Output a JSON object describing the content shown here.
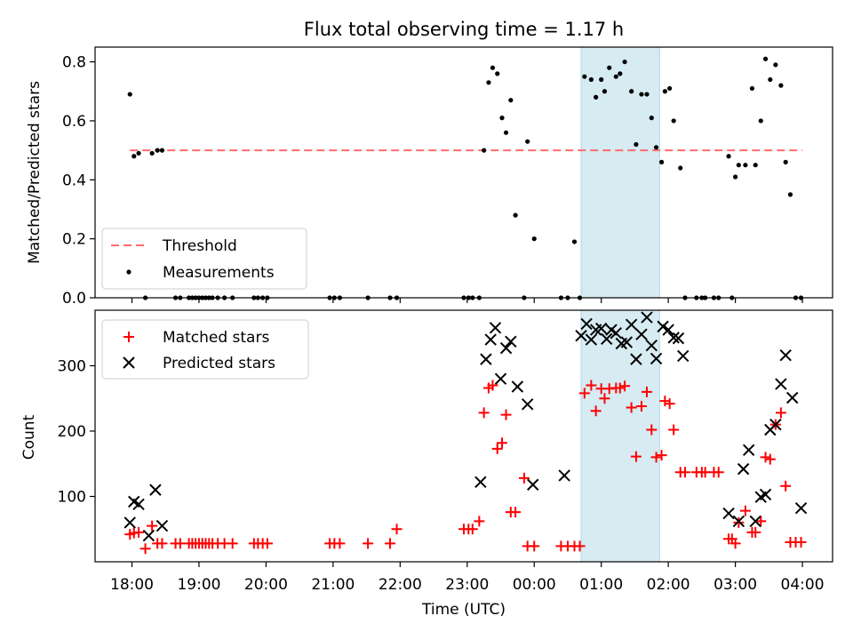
{
  "figure": {
    "title": "Flux total observing time = 1.17 h"
  },
  "chart_data": [
    {
      "type": "scatter",
      "panel": "top",
      "xlabel": "",
      "ylabel": "Matched/Predicted stars",
      "xlim": [
        -0.55,
        10.45
      ],
      "ylim": [
        0,
        0.85
      ],
      "yticks": [
        0.0,
        0.2,
        0.4,
        0.6,
        0.8
      ],
      "ytick_labels": [
        "0.0",
        "0.2",
        "0.4",
        "0.6",
        "0.8"
      ],
      "shaded_region": {
        "x": [
          6.7,
          7.87
        ],
        "color": "#add8e6"
      },
      "legend": {
        "position": "lower-left",
        "entries": [
          "Threshold",
          "Measurements"
        ]
      },
      "series": [
        {
          "name": "Threshold",
          "kind": "line",
          "style": "dashed",
          "color": "#ff6b6b",
          "x": [
            -0.03,
            10.0
          ],
          "y": [
            0.5,
            0.5
          ]
        },
        {
          "name": "Measurements",
          "kind": "scatter",
          "color": "#000000",
          "x": [
            -0.03,
            0.03,
            0.1,
            0.2,
            0.3,
            0.38,
            0.45,
            0.65,
            0.72,
            0.85,
            0.9,
            0.95,
            1.0,
            1.05,
            1.1,
            1.15,
            1.2,
            1.28,
            1.38,
            1.5,
            1.82,
            1.88,
            1.95,
            2.02,
            2.95,
            3.02,
            3.1,
            3.52,
            3.85,
            3.95,
            4.95,
            5.02,
            5.08,
            5.18,
            5.25,
            5.32,
            5.38,
            5.45,
            5.52,
            5.58,
            5.65,
            5.72,
            5.85,
            5.9,
            6.0,
            6.4,
            6.5,
            6.6,
            6.68,
            6.75,
            6.85,
            6.92,
            7.0,
            7.05,
            7.12,
            7.22,
            7.28,
            7.35,
            7.45,
            7.52,
            7.6,
            7.68,
            7.75,
            7.82,
            7.9,
            7.95,
            8.02,
            8.08,
            8.18,
            8.25,
            8.42,
            8.5,
            8.55,
            8.68,
            8.75,
            8.9,
            8.95,
            9.0,
            9.05,
            9.15,
            9.25,
            9.3,
            9.38,
            9.45,
            9.52,
            9.6,
            9.68,
            9.75,
            9.82,
            9.9,
            9.98
          ],
          "y": [
            0.69,
            0.48,
            0.49,
            0.0,
            0.49,
            0.5,
            0.5,
            0.0,
            0.0,
            0.0,
            0.0,
            0.0,
            0.0,
            0.0,
            0.0,
            0.0,
            0.0,
            0.0,
            0.0,
            0.0,
            0.0,
            0.0,
            0.0,
            0.0,
            0.0,
            0.0,
            0.0,
            0.0,
            0.0,
            0.0,
            0.0,
            0.0,
            0.0,
            0.0,
            0.5,
            0.73,
            0.78,
            0.76,
            0.61,
            0.56,
            0.67,
            0.28,
            0.0,
            0.53,
            0.2,
            0.0,
            0.0,
            0.19,
            0.0,
            0.75,
            0.74,
            0.68,
            0.74,
            0.7,
            0.78,
            0.75,
            0.76,
            0.8,
            0.7,
            0.52,
            0.69,
            0.69,
            0.61,
            0.51,
            0.46,
            0.7,
            0.71,
            0.6,
            0.44,
            0.0,
            0.0,
            0.0,
            0.0,
            0.0,
            0.0,
            0.48,
            0.0,
            0.41,
            0.45,
            0.45,
            0.71,
            0.45,
            0.6,
            0.81,
            0.74,
            0.79,
            0.72,
            0.46,
            0.35,
            0.0,
            0.0
          ]
        }
      ]
    },
    {
      "type": "scatter",
      "panel": "bottom",
      "xlabel": "Time (UTC)",
      "ylabel": "Count",
      "xlim": [
        -0.55,
        10.45
      ],
      "ylim": [
        0,
        385
      ],
      "yticks": [
        100,
        200,
        300
      ],
      "ytick_labels": [
        "100",
        "200",
        "300"
      ],
      "xticks": [
        0,
        1,
        2,
        3,
        4,
        5,
        6,
        7,
        8,
        9,
        10
      ],
      "xtick_labels": [
        "18:00",
        "19:00",
        "20:00",
        "21:00",
        "22:00",
        "23:00",
        "00:00",
        "01:00",
        "02:00",
        "03:00",
        "04:00"
      ],
      "shaded_region": {
        "x": [
          6.7,
          7.87
        ],
        "color": "#add8e6"
      },
      "legend": {
        "position": "upper-left",
        "entries": [
          "Matched stars",
          "Predicted stars"
        ]
      },
      "series": [
        {
          "name": "Matched stars",
          "marker": "plus",
          "color": "#ff0000",
          "x": [
            -0.03,
            0.03,
            0.1,
            0.2,
            0.3,
            0.38,
            0.45,
            0.65,
            0.72,
            0.85,
            0.9,
            0.95,
            1.0,
            1.05,
            1.1,
            1.15,
            1.2,
            1.28,
            1.38,
            1.5,
            1.82,
            1.88,
            1.95,
            2.02,
            2.95,
            3.02,
            3.1,
            3.52,
            3.85,
            3.95,
            4.95,
            5.02,
            5.08,
            5.18,
            5.25,
            5.32,
            5.38,
            5.45,
            5.52,
            5.58,
            5.65,
            5.72,
            5.85,
            5.9,
            6.0,
            6.4,
            6.5,
            6.6,
            6.68,
            6.75,
            6.85,
            6.92,
            7.0,
            7.05,
            7.12,
            7.22,
            7.28,
            7.35,
            7.45,
            7.52,
            7.6,
            7.68,
            7.75,
            7.82,
            7.9,
            7.95,
            8.02,
            8.08,
            8.18,
            8.25,
            8.42,
            8.5,
            8.55,
            8.68,
            8.75,
            8.9,
            8.95,
            9.0,
            9.05,
            9.15,
            9.25,
            9.3,
            9.38,
            9.45,
            9.52,
            9.6,
            9.68,
            9.75,
            9.82,
            9.9,
            9.98
          ],
          "y": [
            42,
            44,
            45,
            20,
            55,
            28,
            28,
            28,
            28,
            28,
            28,
            28,
            28,
            28,
            28,
            28,
            28,
            28,
            28,
            28,
            28,
            28,
            28,
            28,
            28,
            28,
            28,
            28,
            28,
            50,
            50,
            50,
            50,
            62,
            228,
            266,
            270,
            173,
            182,
            225,
            76,
            76,
            128,
            24,
            24,
            24,
            24,
            24,
            24,
            258,
            270,
            231,
            265,
            250,
            265,
            266,
            266,
            269,
            236,
            161,
            238,
            260,
            202,
            160,
            163,
            246,
            242,
            202,
            137,
            137,
            137,
            137,
            137,
            137,
            137,
            35,
            35,
            28,
            60,
            78,
            45,
            45,
            62,
            160,
            157,
            210,
            228,
            116,
            30,
            30,
            30
          ]
        },
        {
          "name": "Predicted stars",
          "marker": "x",
          "color": "#000000",
          "x": [
            -0.03,
            0.03,
            0.1,
            0.25,
            0.35,
            0.45,
            5.2,
            5.28,
            5.35,
            5.42,
            5.5,
            5.58,
            5.65,
            5.75,
            5.9,
            5.98,
            6.45,
            6.7,
            6.78,
            6.85,
            6.92,
            7.0,
            7.08,
            7.15,
            7.22,
            7.3,
            7.38,
            7.45,
            7.52,
            7.6,
            7.68,
            7.75,
            7.82,
            7.92,
            8.0,
            8.08,
            8.15,
            8.22,
            8.9,
            9.05,
            9.12,
            9.2,
            9.3,
            9.38,
            9.45,
            9.52,
            9.6,
            9.68,
            9.75,
            9.85,
            9.98
          ],
          "y": [
            60,
            92,
            88,
            40,
            110,
            55,
            122,
            310,
            340,
            358,
            280,
            327,
            337,
            268,
            241,
            118,
            132,
            346,
            364,
            340,
            355,
            357,
            341,
            355,
            350,
            334,
            336,
            363,
            310,
            348,
            374,
            331,
            311,
            360,
            355,
            343,
            342,
            315,
            74,
            62,
            142,
            171,
            62,
            99,
            103,
            202,
            210,
            272,
            316,
            251,
            82
          ]
        }
      ]
    }
  ]
}
